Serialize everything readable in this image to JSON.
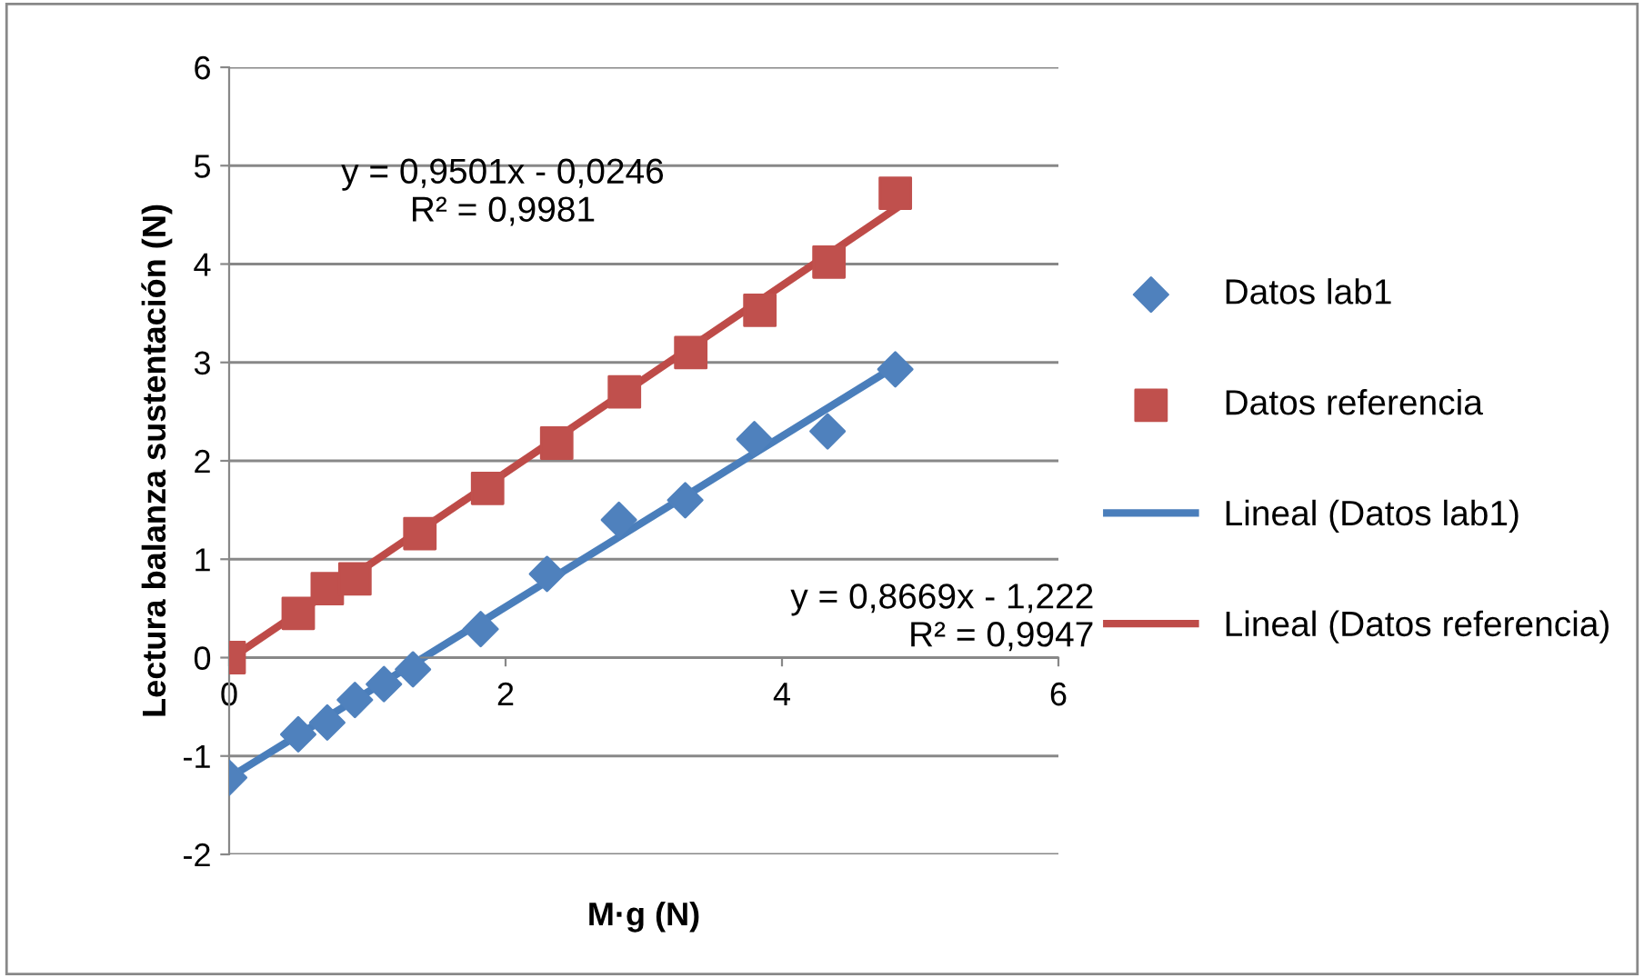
{
  "chart_data": {
    "type": "scatter",
    "xlabel": "M·g (N)",
    "ylabel": "Lectura balanza sustentación (N)",
    "xlim": [
      0,
      6
    ],
    "xticks": [
      0,
      2,
      4,
      6
    ],
    "ylim": [
      -2,
      6
    ],
    "yticks": [
      -2,
      -1,
      0,
      1,
      2,
      3,
      4,
      5,
      6
    ],
    "grid": "y",
    "legend": "right",
    "series": [
      {
        "name": "Datos lab1",
        "marker": "diamond",
        "color": "#4f81bd",
        "x": [
          0,
          0.5,
          0.71,
          0.91,
          1.12,
          1.33,
          1.82,
          2.3,
          2.82,
          3.3,
          3.8,
          4.33,
          4.82
        ],
        "values": [
          -1.22,
          -0.78,
          -0.66,
          -0.43,
          -0.27,
          -0.12,
          0.29,
          0.85,
          1.4,
          1.6,
          2.22,
          2.3,
          2.93
        ]
      },
      {
        "name": "Datos referencia",
        "marker": "square",
        "color": "#c0504d",
        "x": [
          0,
          0.5,
          0.71,
          0.91,
          1.38,
          1.87,
          2.37,
          2.86,
          3.34,
          3.84,
          4.34,
          4.82
        ],
        "values": [
          0,
          0.45,
          0.7,
          0.8,
          1.26,
          1.72,
          2.18,
          2.7,
          3.1,
          3.53,
          4.02,
          4.72
        ]
      },
      {
        "name": "Lineal (Datos lab1)",
        "type": "line",
        "marker": "none",
        "color": "#4a7ebb",
        "x": [
          0,
          4.82
        ],
        "values": [
          -1.22,
          2.96
        ]
      },
      {
        "name": "Lineal (Datos referencia)",
        "type": "line",
        "marker": "none",
        "color": "#be4b48",
        "x": [
          0,
          4.82
        ],
        "values": [
          -0.02,
          4.56
        ]
      }
    ],
    "annotations": [
      "y = 0,9501x - 0,0246\nR² = 0,9981",
      "y = 0,8669x - 1,222\nR² = 0,9947"
    ]
  }
}
